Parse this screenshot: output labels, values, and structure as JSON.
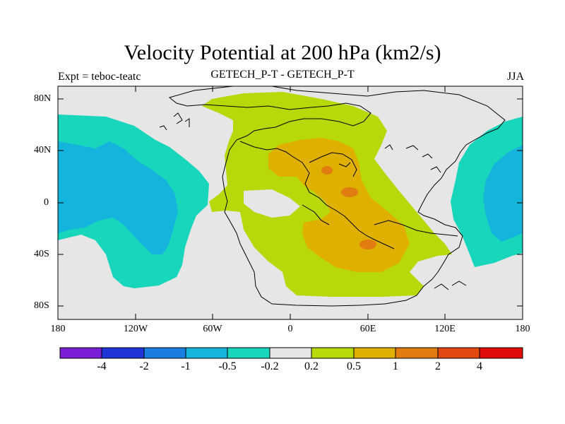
{
  "title": "Velocity Potential at 200 hPa (km2/s)",
  "left_label": "Expt = teboc-teatc",
  "center_label": "GETECH_P-T - GETECH_P-T",
  "right_label": "JJA",
  "y_ticks": [
    "80N",
    "40N",
    "0",
    "40S",
    "80S"
  ],
  "x_ticks": [
    "180",
    "120W",
    "60W",
    "0",
    "60E",
    "120E",
    "180"
  ],
  "colorbar": {
    "labels": [
      "-4",
      "-2",
      "-1",
      "-0.5",
      "-0.2",
      "0.2",
      "0.5",
      "1",
      "2",
      "4"
    ],
    "colors": [
      "#7a1fd6",
      "#1f35d8",
      "#1a7ee0",
      "#14b4dc",
      "#18d6bc",
      "#e6e6e6",
      "#b8d80a",
      "#e0b000",
      "#e07c10",
      "#e04a10",
      "#e00c0c"
    ]
  },
  "fill_colors": {
    "background": "#e6e6e6",
    "neg_02": "#18d6bc",
    "neg_05": "#14b4dc",
    "pos_02": "#b8d80a",
    "pos_05": "#e0b000",
    "pos_1": "#e07c10"
  }
}
